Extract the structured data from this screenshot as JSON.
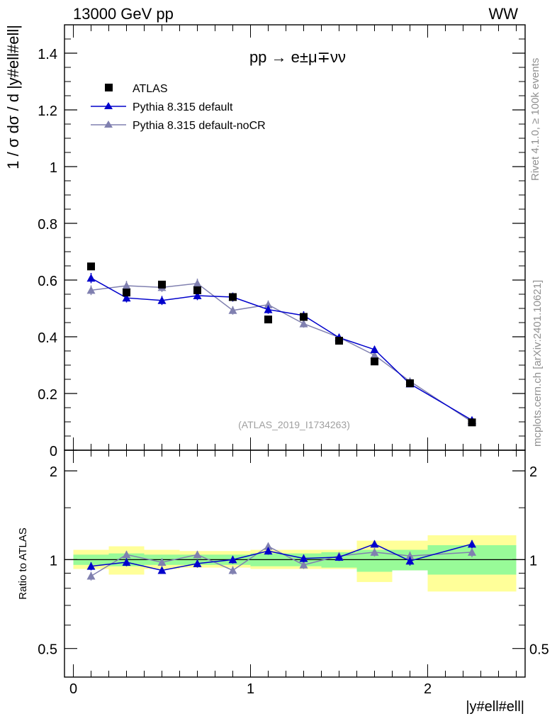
{
  "header": {
    "left_label": "13000 GeV pp",
    "right_label": "WW"
  },
  "side_labels": {
    "rivet": "Rivet 4.1.0, ≥ 100k events",
    "mcplots": "mcplots.cern.ch [arXiv:2401.10621]"
  },
  "colors": {
    "atlas": "#000000",
    "default": "#0000cc",
    "nocr": "#8080b0",
    "band_inner": "#98fb98",
    "band_outer": "#ffff99"
  },
  "chart_data": [
    {
      "type": "line",
      "panel": "main",
      "title": "pp → e±μ∓νν",
      "ylabel": "1 / σ  dσ / d |y#ell#ell|",
      "watermark": "(ATLAS_2019_I1734263)",
      "xlim": [
        -0.05,
        2.55
      ],
      "ylim": [
        0,
        1.5
      ],
      "yticks": [
        0,
        0.2,
        0.4,
        0.6,
        0.8,
        1,
        1.2,
        1.4
      ],
      "ytick_labels": [
        "0",
        "0.2",
        "0.4",
        "0.6",
        "0.8",
        "1",
        "1.2",
        "1.4"
      ],
      "legend_position": "top-left",
      "series": [
        {
          "name": "ATLAS",
          "marker": "square",
          "x": [
            0.1,
            0.3,
            0.5,
            0.7,
            0.9,
            1.1,
            1.3,
            1.5,
            1.7,
            1.9,
            2.25
          ],
          "values": [
            0.648,
            0.556,
            0.584,
            0.564,
            0.54,
            0.461,
            0.47,
            0.386,
            0.313,
            0.236,
            0.098
          ],
          "errors": [
            0.008,
            0.008,
            0.008,
            0.008,
            0.008,
            0.007,
            0.007,
            0.006,
            0.006,
            0.005,
            0.004
          ]
        },
        {
          "name": "Pythia 8.315 default",
          "marker": "triangle",
          "x": [
            0.1,
            0.3,
            0.5,
            0.7,
            0.9,
            1.1,
            1.3,
            1.5,
            1.7,
            1.9,
            2.25
          ],
          "values": [
            0.607,
            0.537,
            0.528,
            0.545,
            0.54,
            0.496,
            0.475,
            0.397,
            0.355,
            0.234,
            0.106
          ],
          "errors": [
            0.018,
            0.016,
            0.016,
            0.016,
            0.016,
            0.015,
            0.015,
            0.013,
            0.012,
            0.009,
            0.006
          ]
        },
        {
          "name": "Pythia 8.315 default-noCR",
          "marker": "triangle",
          "x": [
            0.1,
            0.3,
            0.5,
            0.7,
            0.9,
            1.1,
            1.3,
            1.5,
            1.7,
            1.9,
            2.25
          ],
          "values": [
            0.564,
            0.58,
            0.574,
            0.588,
            0.493,
            0.513,
            0.446,
            0.398,
            0.335,
            0.243,
            0.1
          ],
          "errors": [
            0.017,
            0.017,
            0.016,
            0.017,
            0.015,
            0.015,
            0.014,
            0.013,
            0.012,
            0.009,
            0.006
          ]
        }
      ]
    },
    {
      "type": "line",
      "panel": "ratio",
      "ylabel": "Ratio to ATLAS",
      "xlabel": "|y#ell#ell|",
      "xlim": [
        -0.05,
        2.55
      ],
      "ylim": [
        0.4,
        2.35
      ],
      "yscale": "log",
      "yticks": [
        0.5,
        1,
        2
      ],
      "ytick_labels": [
        "0.5",
        "1",
        "2"
      ],
      "xticks": [
        0,
        1,
        2
      ],
      "xtick_labels": [
        "0",
        "1",
        "2"
      ],
      "bins": [
        [
          0.0,
          0.2
        ],
        [
          0.2,
          0.4
        ],
        [
          0.4,
          0.6
        ],
        [
          0.6,
          0.8
        ],
        [
          0.8,
          1.0
        ],
        [
          1.0,
          1.2
        ],
        [
          1.2,
          1.4
        ],
        [
          1.4,
          1.6
        ],
        [
          1.6,
          1.8
        ],
        [
          1.8,
          2.0
        ],
        [
          2.0,
          2.5
        ]
      ],
      "band_inner": [
        [
          0.96,
          1.04
        ],
        [
          0.95,
          1.05
        ],
        [
          0.96,
          1.04
        ],
        [
          0.96,
          1.04
        ],
        [
          0.96,
          1.04
        ],
        [
          0.95,
          1.05
        ],
        [
          0.95,
          1.05
        ],
        [
          0.94,
          1.06
        ],
        [
          0.91,
          1.08
        ],
        [
          0.92,
          1.08
        ],
        [
          0.89,
          1.12
        ]
      ],
      "band_outer": [
        [
          0.93,
          1.08
        ],
        [
          0.89,
          1.11
        ],
        [
          0.93,
          1.08
        ],
        [
          0.94,
          1.07
        ],
        [
          0.94,
          1.07
        ],
        [
          0.93,
          1.08
        ],
        [
          0.93,
          1.08
        ],
        [
          0.93,
          1.08
        ],
        [
          0.84,
          1.16
        ],
        [
          0.92,
          1.16
        ],
        [
          0.78,
          1.21
        ]
      ],
      "series": [
        {
          "name": "Pythia 8.315 default",
          "x": [
            0.1,
            0.3,
            0.5,
            0.7,
            0.9,
            1.1,
            1.3,
            1.5,
            1.7,
            1.9,
            2.25
          ],
          "values": [
            0.95,
            0.98,
            0.92,
            0.97,
            1.0,
            1.07,
            1.01,
            1.02,
            1.13,
            0.99,
            1.13
          ],
          "errors": [
            0.03,
            0.03,
            0.025,
            0.03,
            0.03,
            0.03,
            0.03,
            0.03,
            0.03,
            0.035,
            0.035
          ]
        },
        {
          "name": "Pythia 8.315 default-noCR",
          "x": [
            0.1,
            0.3,
            0.5,
            0.7,
            0.9,
            1.1,
            1.3,
            1.5,
            1.7,
            1.9,
            2.25
          ],
          "values": [
            0.88,
            1.04,
            0.98,
            1.04,
            0.92,
            1.11,
            0.96,
            1.03,
            1.06,
            1.03,
            1.06
          ],
          "errors": [
            0.03,
            0.03,
            0.03,
            0.03,
            0.03,
            0.03,
            0.03,
            0.03,
            0.035,
            0.035,
            0.04
          ]
        }
      ]
    }
  ]
}
